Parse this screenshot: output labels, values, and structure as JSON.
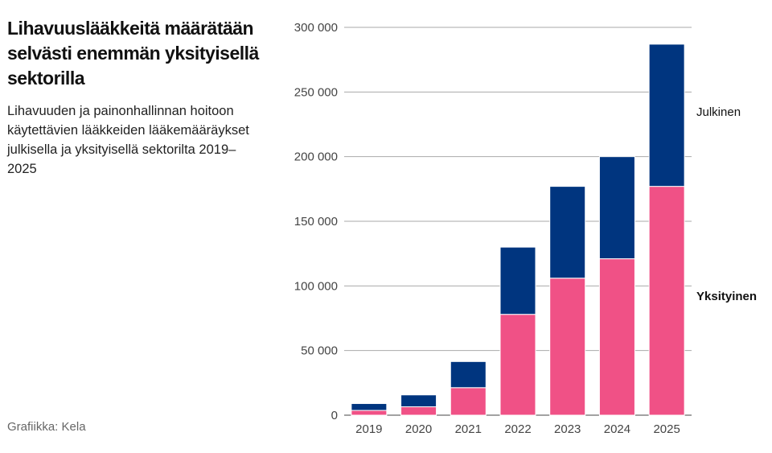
{
  "title": "Lihavuuslääkkeitä määrätään selvästi enemmän yksityisellä sektorilla",
  "subtitle": "Lihavuuden ja painonhallinnan hoitoon käytettävien lääkkeiden lääkemääräykset julkisella ja yksityisellä sektorilta 2019–2025",
  "source": "Grafiikka: Kela",
  "chart_data": {
    "type": "bar",
    "stacked": true,
    "categories": [
      "2019",
      "2020",
      "2021",
      "2022",
      "2023",
      "2024",
      "2025"
    ],
    "series": [
      {
        "name": "Yksityinen",
        "color": "#f05186",
        "values": [
          3700,
          6500,
          21300,
          78000,
          106000,
          121000,
          177000
        ]
      },
      {
        "name": "Julkinen",
        "color": "#00357f",
        "values": [
          5300,
          9200,
          20200,
          52000,
          71000,
          79000,
          110000
        ]
      }
    ],
    "ylim": [
      0,
      300000
    ],
    "yticks": [
      0,
      50000,
      100000,
      150000,
      200000,
      250000,
      300000
    ],
    "ytick_labels": [
      "0",
      "50 000",
      "100 000",
      "150 000",
      "200 000",
      "250 000",
      "300 000"
    ],
    "grid": true,
    "legend": "right, direct labels"
  }
}
